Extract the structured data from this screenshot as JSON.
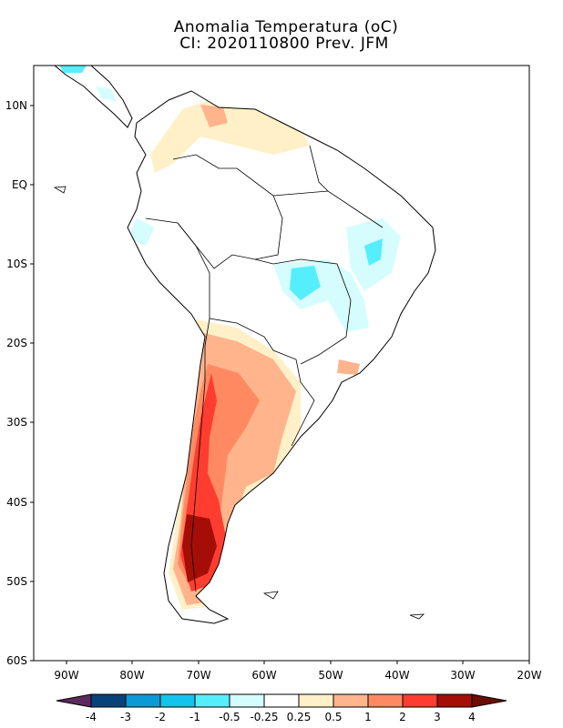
{
  "title": "Anomalia Temperatura (oC)",
  "subtitle": "CI: 2020110800 Prev. JFM",
  "map": {
    "region": "South America",
    "lon_range": [
      "95W",
      "20W"
    ],
    "lat_range": [
      "60S",
      "15N"
    ],
    "lat_labels": [
      "10N",
      "EQ",
      "10S",
      "20S",
      "30S",
      "40S",
      "50S",
      "60S"
    ],
    "lon_labels": [
      "90W",
      "80W",
      "70W",
      "60W",
      "50W",
      "40W",
      "30W",
      "20W"
    ]
  },
  "colorbar": {
    "labels": [
      "-4",
      "-3",
      "-2",
      "-1",
      "-0.5",
      "-0.25",
      "0.25",
      "0.5",
      "1",
      "2",
      "3",
      "4"
    ],
    "colors": [
      "#5c2a5e",
      "#08427a",
      "#0a9ad6",
      "#12c4ea",
      "#55eefc",
      "#d5fdfd",
      "#ffffff",
      "#fff0c8",
      "#ffb48c",
      "#ff8a62",
      "#ff3c30",
      "#a50e06",
      "#6c0d05"
    ]
  }
}
